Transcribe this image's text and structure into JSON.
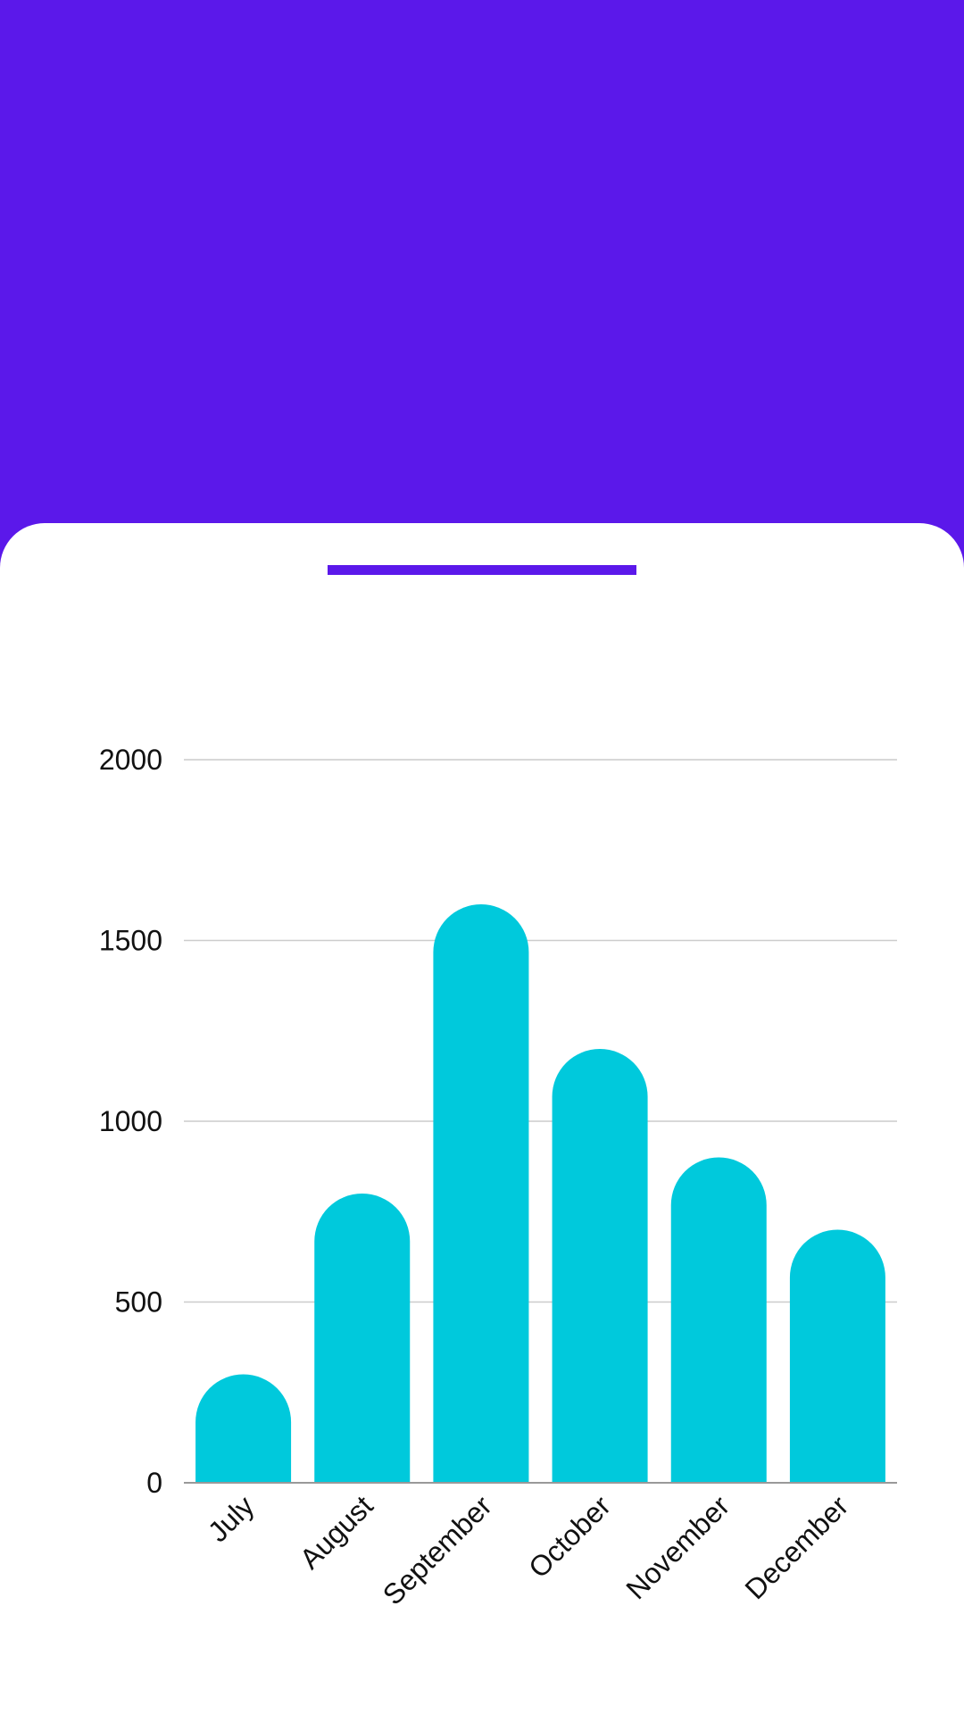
{
  "colors": {
    "header": "#5b18ea",
    "card": "#ffffff",
    "bar": "#00c9dc",
    "grid": "#cccccc",
    "axis": "#999999",
    "text": "#111111"
  },
  "chart_data": {
    "type": "bar",
    "title": "",
    "xlabel": "",
    "ylabel": "",
    "categories": [
      "July",
      "August",
      "September",
      "October",
      "November",
      "December"
    ],
    "values": [
      300,
      800,
      1600,
      1200,
      900,
      700
    ],
    "ylim": [
      0,
      2000
    ],
    "yticks": [
      0,
      500,
      1000,
      1500,
      2000
    ],
    "ytick_labels": [
      "0",
      "500",
      "1000",
      "1500",
      "2000"
    ],
    "grid": true,
    "bar_style": "rounded-top",
    "xtick_rotation": "-45deg"
  }
}
